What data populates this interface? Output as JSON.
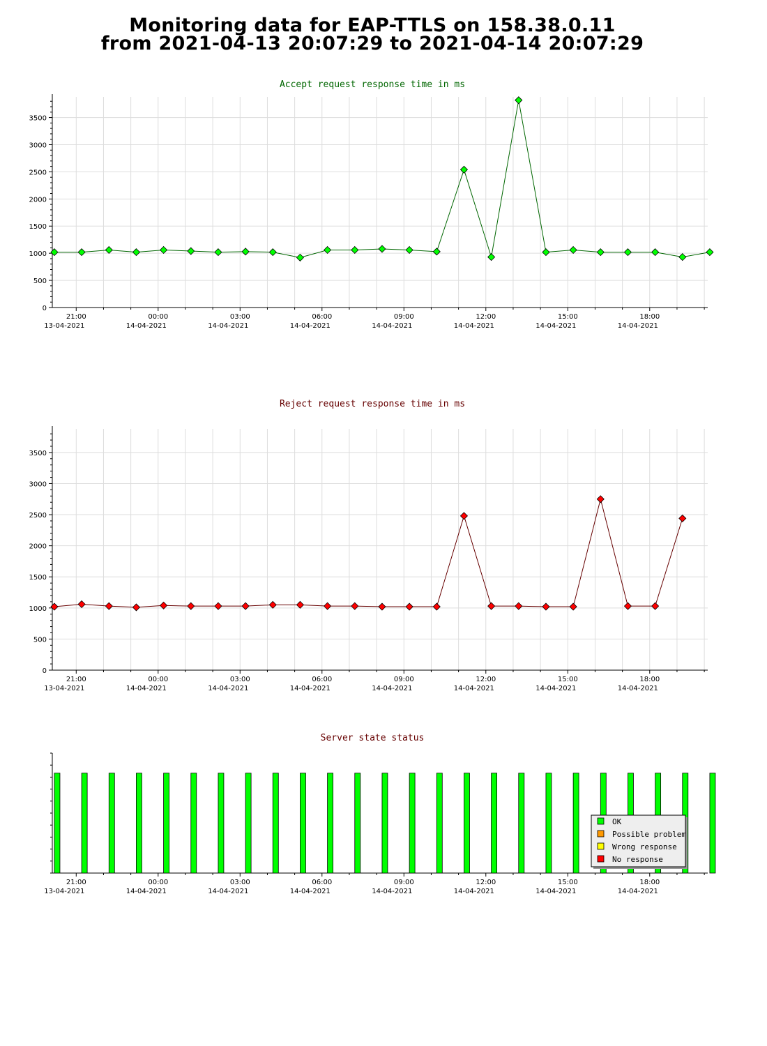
{
  "page": {
    "title_line1": "Monitoring data for EAP-TTLS on 158.38.0.11",
    "title_line2": "from 2021-04-13 20:07:29 to 2021-04-14 20:07:29"
  },
  "colors": {
    "accept_title": "#006600",
    "reject_title": "#660000",
    "status_title": "#660000",
    "accept_line": "#006600",
    "accept_marker": "#00ff00",
    "reject_line": "#660000",
    "reject_marker": "#ff0000",
    "grid": "#dddddd",
    "ok": "#00ff00",
    "possible_problem": "#ff9900",
    "wrong_response": "#ffff00",
    "no_response": "#ff0000"
  },
  "x_axis": {
    "start_hour": 20.1247,
    "end_hour": 44.1247,
    "ticks": [
      {
        "hour": 21,
        "time": "21:00",
        "date": "13-04-2021"
      },
      {
        "hour": 24,
        "time": "00:00",
        "date": "14-04-2021"
      },
      {
        "hour": 27,
        "time": "03:00",
        "date": "14-04-2021"
      },
      {
        "hour": 30,
        "time": "06:00",
        "date": "14-04-2021"
      },
      {
        "hour": 33,
        "time": "09:00",
        "date": "14-04-2021"
      },
      {
        "hour": 36,
        "time": "12:00",
        "date": "14-04-2021"
      },
      {
        "hour": 39,
        "time": "15:00",
        "date": "14-04-2021"
      },
      {
        "hour": 42,
        "time": "18:00",
        "date": "14-04-2021"
      }
    ]
  },
  "chart_data": [
    {
      "type": "line",
      "title": "Accept request response time in ms",
      "xlabel": "",
      "ylabel": "",
      "ylim": [
        0,
        3880
      ],
      "yticks": [
        0,
        500,
        1000,
        1500,
        2000,
        2500,
        3000,
        3500
      ],
      "grid": true,
      "x": [
        20.2,
        21.2,
        22.2,
        23.2,
        24.2,
        25.2,
        26.2,
        27.2,
        28.2,
        29.2,
        30.2,
        31.2,
        32.2,
        33.2,
        34.2,
        35.2,
        36.2,
        37.2,
        38.2,
        39.2,
        40.2,
        41.2,
        42.2,
        43.2,
        44.2
      ],
      "series": [
        {
          "values": [
            1020,
            1020,
            1060,
            1020,
            1060,
            1040,
            1020,
            1030,
            1020,
            920,
            1060,
            1060,
            1080,
            1060,
            1030,
            2540,
            930,
            3820,
            1020,
            1060,
            1020,
            1020,
            1020,
            930,
            1020
          ]
        }
      ]
    },
    {
      "type": "line",
      "title": "Reject request response time in ms",
      "xlabel": "",
      "ylabel": "",
      "ylim": [
        0,
        3880
      ],
      "yticks": [
        0,
        500,
        1000,
        1500,
        2000,
        2500,
        3000,
        3500
      ],
      "grid": true,
      "x": [
        20.2,
        21.2,
        22.2,
        23.2,
        24.2,
        25.2,
        26.2,
        27.2,
        28.2,
        29.2,
        30.2,
        31.2,
        32.2,
        33.2,
        34.2,
        35.2,
        36.2,
        37.2,
        38.2,
        39.2,
        40.2,
        41.2,
        42.2,
        43.2
      ],
      "series": [
        {
          "values": [
            1020,
            1060,
            1030,
            1010,
            1040,
            1030,
            1030,
            1030,
            1050,
            1050,
            1030,
            1030,
            1020,
            1020,
            1020,
            2480,
            1030,
            1030,
            1020,
            1020,
            2750,
            1030,
            1030,
            2440
          ]
        }
      ]
    },
    {
      "type": "bar",
      "title": "Server state status",
      "grid": false,
      "legend_position": "bottom-right",
      "legend": [
        "OK",
        "Possible problem",
        "Wrong response",
        "No response"
      ],
      "x": [
        20.2,
        21.2,
        22.2,
        23.2,
        24.2,
        25.2,
        26.2,
        27.2,
        28.2,
        29.2,
        30.2,
        31.2,
        32.2,
        33.2,
        34.2,
        35.2,
        36.2,
        37.2,
        38.2,
        39.2,
        40.2,
        41.2,
        42.2,
        43.2,
        44.2
      ],
      "states": [
        "OK",
        "OK",
        "OK",
        "OK",
        "OK",
        "OK",
        "OK",
        "OK",
        "OK",
        "OK",
        "OK",
        "OK",
        "OK",
        "OK",
        "OK",
        "OK",
        "OK",
        "OK",
        "OK",
        "OK",
        "OK",
        "OK",
        "OK",
        "OK",
        "OK"
      ],
      "ylim": [
        0,
        1.2
      ],
      "values": [
        1,
        1,
        1,
        1,
        1,
        1,
        1,
        1,
        1,
        1,
        1,
        1,
        1,
        1,
        1,
        1,
        1,
        1,
        1,
        1,
        1,
        1,
        1,
        1,
        1
      ]
    }
  ]
}
